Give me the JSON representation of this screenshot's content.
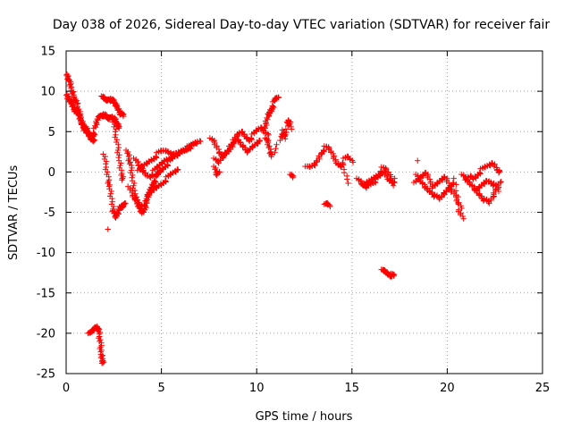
{
  "chart_data": {
    "type": "scatter",
    "title": "Day 038 of 2026, Sidereal Day-to-day VTEC variation (SDTVAR) for receiver fair",
    "xlabel": "GPS time / hours",
    "ylabel": "SDTVAR / TECUs",
    "xlim": [
      0,
      25
    ],
    "ylim": [
      -25,
      15
    ],
    "xticks": [
      "0",
      "5",
      "10",
      "15",
      "20",
      "25"
    ],
    "yticks": [
      "15",
      "10",
      "5",
      "0",
      "-5",
      "-10",
      "-15",
      "-20",
      "-25"
    ],
    "grid": true,
    "marker": "+",
    "color": "#ff0000",
    "segments": [
      {
        "name": "early-high",
        "x": [
          0.0,
          0.1,
          0.2,
          0.3,
          0.4,
          0.5,
          0.6,
          0.7,
          0.8,
          0.9,
          1.0,
          1.1,
          1.2,
          1.3,
          1.4,
          1.5,
          1.6,
          1.7,
          1.8,
          1.9,
          2.0,
          2.1,
          2.2,
          2.3,
          2.4,
          2.5,
          2.6,
          2.7,
          2.8
        ],
        "y": [
          12.0,
          11.5,
          11.0,
          10.2,
          9.5,
          8.8,
          8.0,
          7.2,
          6.5,
          5.8,
          5.2,
          4.8,
          4.5,
          4.4,
          4.6,
          5.2,
          6.0,
          6.8,
          7.0,
          7.2,
          7.0,
          6.8,
          6.5,
          6.8,
          7.0,
          6.6,
          6.2,
          5.8,
          5.5
        ]
      },
      {
        "name": "early-low",
        "x": [
          0.0,
          0.1,
          0.2,
          0.3,
          0.4,
          0.5,
          0.6,
          0.7,
          0.8,
          0.9,
          1.0,
          1.1,
          1.2,
          1.3,
          1.4,
          1.5
        ],
        "y": [
          9.5,
          9.0,
          8.8,
          8.5,
          8.0,
          7.6,
          7.2,
          6.8,
          6.2,
          5.8,
          5.5,
          5.0,
          4.6,
          4.2,
          4.0,
          4.3
        ]
      },
      {
        "name": "upper-peak-2h",
        "x": [
          1.9,
          2.0,
          2.1,
          2.2,
          2.3,
          2.4,
          2.5,
          2.6,
          2.7,
          2.8,
          2.9,
          3.0
        ],
        "y": [
          9.2,
          9.0,
          8.8,
          9.0,
          9.2,
          8.9,
          8.6,
          8.3,
          8.0,
          7.6,
          7.2,
          6.8
        ]
      },
      {
        "name": "drop-2h",
        "x": [
          2.0,
          2.1,
          2.2,
          2.3,
          2.4,
          2.5,
          2.6,
          2.7,
          2.8,
          2.9,
          3.0,
          3.1
        ],
        "y": [
          2.0,
          0.5,
          -1.0,
          -2.0,
          -3.5,
          -5.0,
          -5.8,
          -5.2,
          -4.5,
          -4.0,
          -4.3,
          -4.0
        ]
      },
      {
        "name": "steep-3h",
        "x": [
          2.5,
          2.6,
          2.7,
          2.8,
          2.9,
          3.0
        ],
        "y": [
          6.0,
          4.5,
          3.0,
          1.5,
          0.0,
          -1.0
        ]
      },
      {
        "name": "vee-3to5h",
        "x": [
          3.2,
          3.3,
          3.4,
          3.5,
          3.6,
          3.7,
          3.8,
          3.9,
          4.0,
          4.1,
          4.2,
          4.3,
          4.4,
          4.5,
          4.6,
          4.7,
          4.8,
          4.9,
          5.0,
          5.2,
          5.4,
          5.6,
          5.8,
          6.0,
          6.2,
          6.4,
          6.6,
          6.8
        ],
        "y": [
          2.5,
          1.5,
          0.5,
          -1.0,
          -2.5,
          -3.5,
          -4.3,
          -4.8,
          -5.0,
          -4.5,
          -3.8,
          -3.0,
          -2.4,
          -1.8,
          -1.2,
          -0.8,
          -0.4,
          0.0,
          0.3,
          0.8,
          1.2,
          1.6,
          2.0,
          2.5,
          2.8,
          3.0,
          3.2,
          3.5
        ]
      },
      {
        "name": "vee-3to5h-b",
        "x": [
          3.3,
          3.5,
          3.7,
          3.9,
          4.1,
          4.3,
          4.5,
          4.7,
          4.9,
          5.1,
          5.3,
          5.5,
          5.7,
          5.9
        ],
        "y": [
          -2.0,
          -3.0,
          -3.8,
          -4.2,
          -4.0,
          -3.2,
          -2.5,
          -2.0,
          -1.6,
          -1.2,
          -0.8,
          -0.4,
          0.0,
          0.4
        ]
      },
      {
        "name": "rise-4to7h",
        "x": [
          3.6,
          3.8,
          4.0,
          4.2,
          4.4,
          4.6,
          4.8,
          5.0,
          5.2,
          5.4,
          5.6,
          5.8,
          6.0,
          6.2,
          6.4,
          6.6,
          6.8,
          7.0
        ],
        "y": [
          1.5,
          0.8,
          0.2,
          -0.3,
          -0.5,
          0.0,
          0.5,
          1.0,
          1.5,
          1.8,
          2.0,
          2.2,
          2.5,
          2.8,
          3.0,
          3.2,
          3.5,
          3.8
        ]
      },
      {
        "name": "hump-4to5h",
        "x": [
          3.8,
          4.0,
          4.2,
          4.4,
          4.6,
          4.8,
          5.0,
          5.2,
          5.4,
          5.6
        ],
        "y": [
          0.0,
          0.6,
          1.0,
          1.4,
          1.8,
          2.2,
          2.5,
          2.6,
          2.5,
          2.3
        ]
      },
      {
        "name": "mid-7to10h",
        "x": [
          7.6,
          7.8,
          8.0,
          8.2,
          8.4,
          8.6,
          8.8,
          9.0,
          9.2,
          9.4,
          9.6,
          9.8,
          10.0,
          10.2
        ],
        "y": [
          4.0,
          3.5,
          2.5,
          2.0,
          2.5,
          3.0,
          3.5,
          4.0,
          3.5,
          3.0,
          2.5,
          3.0,
          3.5,
          4.0
        ]
      },
      {
        "name": "mid-7to10h-b",
        "x": [
          7.8,
          8.0,
          8.2,
          8.4,
          8.6,
          8.8,
          9.0,
          9.2,
          9.4,
          9.6,
          9.8,
          10.0,
          10.2,
          10.4,
          10.6
        ],
        "y": [
          1.5,
          1.0,
          1.8,
          2.5,
          3.0,
          3.8,
          4.5,
          5.0,
          4.5,
          4.0,
          4.5,
          5.0,
          5.5,
          5.0,
          4.8
        ]
      },
      {
        "name": "low-8to10h",
        "x": [
          7.8,
          7.9,
          8.0
        ],
        "y": [
          0.5,
          -0.5,
          0.0
        ]
      },
      {
        "name": "rise-10to11h",
        "x": [
          10.4,
          10.5,
          10.6,
          10.7,
          10.8,
          10.9,
          11.0,
          11.1
        ],
        "y": [
          5.0,
          6.0,
          7.0,
          7.5,
          8.0,
          8.5,
          9.0,
          9.2
        ]
      },
      {
        "name": "small-11h",
        "x": [
          10.5,
          10.6,
          10.7,
          10.8,
          11.3,
          11.4,
          11.5,
          11.6,
          11.7,
          11.8
        ],
        "y": [
          4.0,
          3.5,
          2.5,
          2.0,
          4.5,
          5.0,
          4.0,
          6.0,
          6.5,
          5.5
        ]
      },
      {
        "name": "below-12h",
        "x": [
          11.8,
          11.9
        ],
        "y": [
          -0.5,
          -0.8
        ]
      },
      {
        "name": "after-12h",
        "x": [
          12.6,
          12.8,
          13.0,
          13.2,
          13.4,
          13.6,
          13.8,
          14.0,
          14.2,
          14.4,
          14.6,
          14.8,
          15.0
        ],
        "y": [
          0.5,
          0.5,
          0.8,
          1.5,
          2.5,
          3.0,
          2.8,
          2.0,
          1.2,
          0.8,
          1.5,
          1.8,
          1.2
        ]
      },
      {
        "name": "isolated-14h",
        "x": [
          13.6,
          13.7,
          13.8
        ],
        "y": [
          -4.2,
          -4.0,
          -4.3
        ]
      },
      {
        "name": "sparse-14h",
        "x": [
          14.5,
          14.8
        ],
        "y": [
          0.5,
          -1.5
        ]
      },
      {
        "name": "cluster-15to17h",
        "x": [
          15.3,
          15.5,
          15.7,
          15.9,
          16.1,
          16.3,
          16.5,
          16.7,
          16.9,
          17.1,
          17.3
        ],
        "y": [
          -1.0,
          -1.5,
          -2.0,
          -1.5,
          -1.2,
          -1.0,
          -0.5,
          0.0,
          -0.8,
          -1.2,
          -1.0
        ]
      },
      {
        "name": "cluster-15to17h-b",
        "x": [
          15.6,
          15.8,
          16.0,
          16.2,
          16.4,
          16.6,
          16.8,
          17.0,
          17.2
        ],
        "y": [
          -1.8,
          -1.4,
          -1.0,
          -0.6,
          -0.2,
          0.4,
          0.2,
          -0.6,
          -1.6
        ]
      },
      {
        "name": "isolated-17h",
        "x": [
          16.6,
          16.7,
          16.8,
          16.9,
          17.0,
          17.1,
          17.2
        ],
        "y": [
          -12.3,
          -12.4,
          -12.5,
          -12.6,
          -12.7,
          -12.8,
          -13.0
        ]
      },
      {
        "name": "late-18to21h",
        "x": [
          18.3,
          18.5,
          18.7,
          18.9,
          19.1,
          19.3,
          19.5,
          19.7,
          19.9,
          20.1,
          20.3,
          20.5,
          20.7
        ],
        "y": [
          -1.5,
          -1.0,
          -0.5,
          0.0,
          -1.0,
          -2.0,
          -1.5,
          -1.0,
          -0.5,
          -1.5,
          -2.5,
          -3.5,
          -4.5
        ]
      },
      {
        "name": "late-18to21h-b",
        "x": [
          18.4,
          18.6,
          18.8,
          19.0,
          19.2,
          19.4,
          19.6,
          19.8,
          20.0,
          20.2,
          20.4,
          20.6,
          20.8
        ],
        "y": [
          -0.5,
          -1.2,
          -1.8,
          -2.2,
          -2.5,
          -3.0,
          -3.5,
          -2.8,
          -2.2,
          -1.6,
          -1.0,
          -4.8,
          -5.8
        ]
      },
      {
        "name": "late-21to23h",
        "x": [
          20.8,
          21.0,
          21.2,
          21.4,
          21.6,
          21.8,
          22.0,
          22.2,
          22.4,
          22.6,
          22.8
        ],
        "y": [
          -0.5,
          -1.0,
          -0.5,
          -0.8,
          -0.2,
          0.2,
          0.5,
          0.8,
          1.2,
          0.5,
          0.0
        ]
      },
      {
        "name": "late-21to23h-b",
        "x": [
          21.0,
          21.2,
          21.4,
          21.6,
          21.8,
          22.0,
          22.2,
          22.4,
          22.6,
          22.8
        ],
        "y": [
          -1.2,
          -1.6,
          -2.0,
          -2.5,
          -3.0,
          -3.5,
          -4.0,
          -3.0,
          -2.0,
          -1.0
        ]
      },
      {
        "name": "late-21to23h-c",
        "x": [
          21.5,
          21.7,
          21.9,
          22.1,
          22.3,
          22.5,
          22.7
        ],
        "y": [
          -2.5,
          -2.0,
          -1.5,
          -1.0,
          -1.2,
          -1.6,
          -2.5
        ]
      },
      {
        "name": "isolated-19h",
        "x": [
          18.5
        ],
        "y": [
          1.2
        ]
      },
      {
        "name": "isolated-2h-low",
        "x": [
          2.25
        ],
        "y": [
          -7.3
        ]
      },
      {
        "name": "isolated-1to2h",
        "x": [
          1.2,
          1.3,
          1.4,
          1.5,
          1.6,
          1.7,
          1.75,
          1.8,
          1.85,
          1.9,
          1.95
        ],
        "y": [
          -20.2,
          -20.0,
          -19.7,
          -19.3,
          -19.0,
          -19.5,
          -20.5,
          -21.5,
          -22.5,
          -23.2,
          -23.6
        ]
      }
    ]
  }
}
